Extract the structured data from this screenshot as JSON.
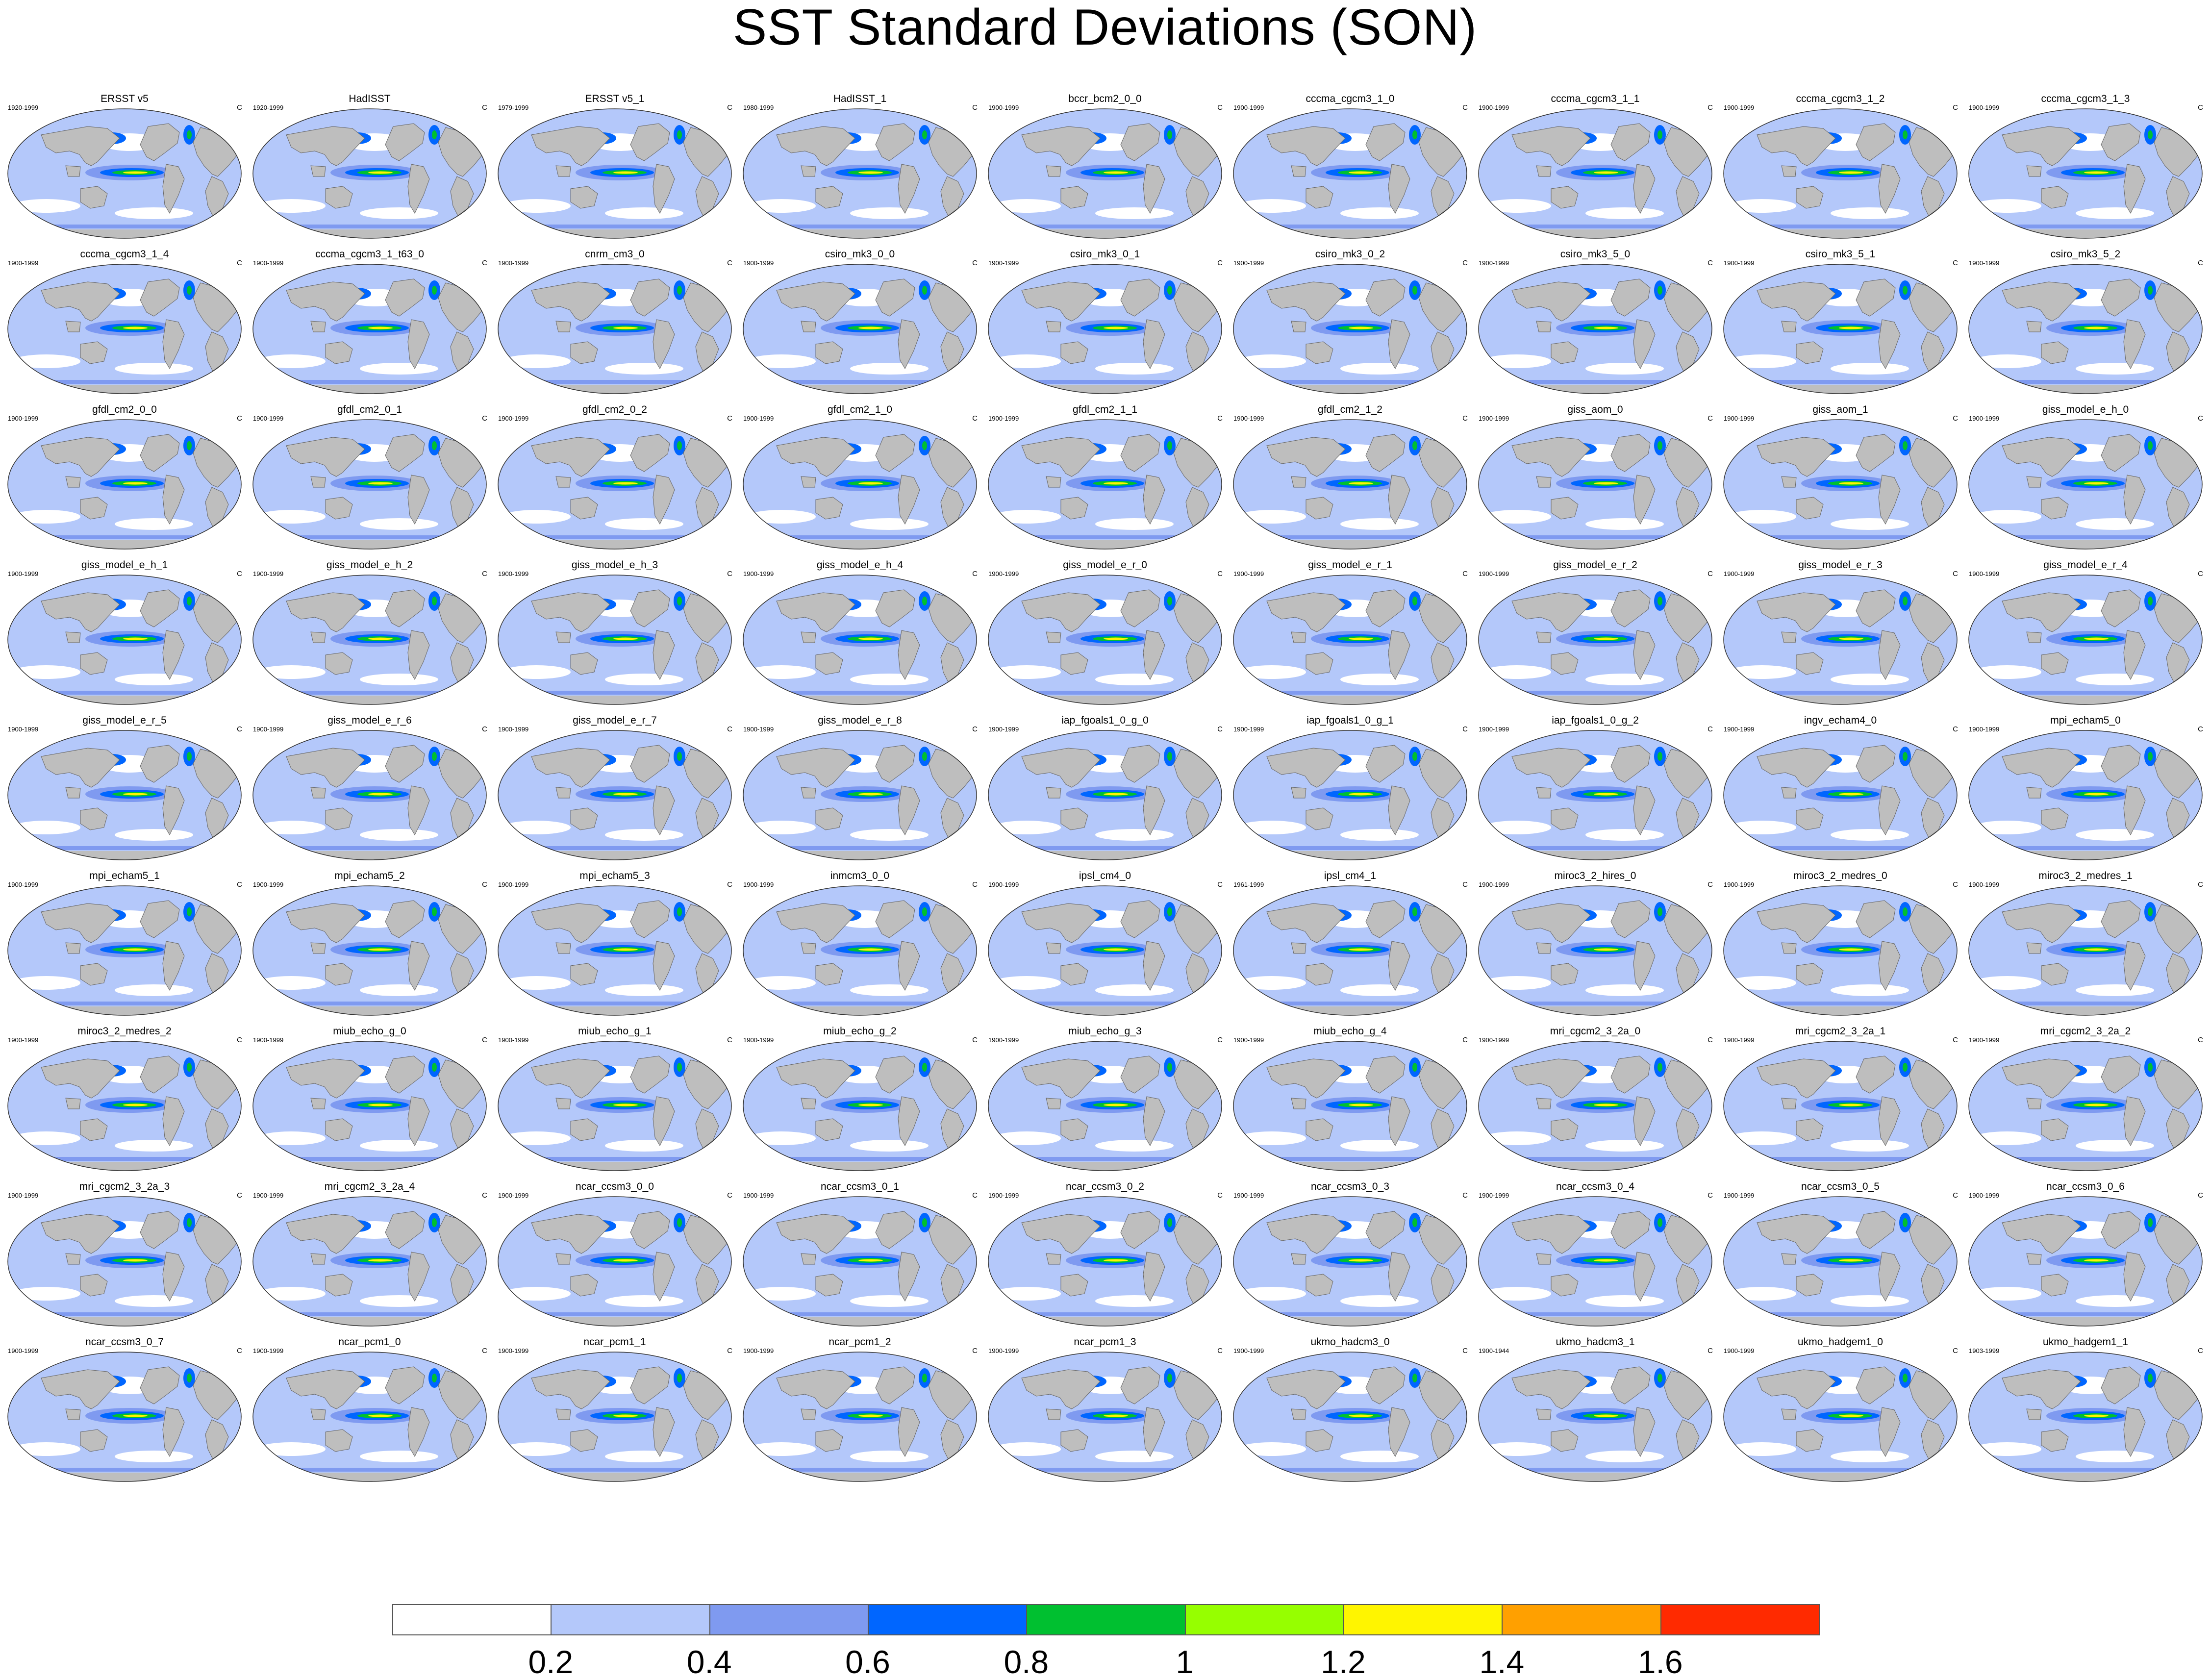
{
  "title": "SST Standard Deviations (SON)",
  "units": "C",
  "colorbar": {
    "levels": [
      "0.2",
      "0.4",
      "0.6",
      "0.8",
      "1",
      "1.2",
      "1.4",
      "1.6"
    ],
    "colors": [
      "#ffffff",
      "#b4c8fa",
      "#7f9af0",
      "#0066ff",
      "#00c030",
      "#96ff00",
      "#fff500",
      "#ffa000",
      "#ff2a00"
    ]
  },
  "land_color": "#bebebe",
  "panels": [
    {
      "name": "ERSST v5",
      "period": "1920-1999"
    },
    {
      "name": "HadISST",
      "period": "1920-1999"
    },
    {
      "name": "ERSST v5_1",
      "period": "1979-1999"
    },
    {
      "name": "HadISST_1",
      "period": "1980-1999"
    },
    {
      "name": "bccr_bcm2_0_0",
      "period": "1900-1999"
    },
    {
      "name": "cccma_cgcm3_1_0",
      "period": "1900-1999"
    },
    {
      "name": "cccma_cgcm3_1_1",
      "period": "1900-1999"
    },
    {
      "name": "cccma_cgcm3_1_2",
      "period": "1900-1999"
    },
    {
      "name": "cccma_cgcm3_1_3",
      "period": "1900-1999"
    },
    {
      "name": "cccma_cgcm3_1_4",
      "period": "1900-1999"
    },
    {
      "name": "cccma_cgcm3_1_t63_0",
      "period": "1900-1999"
    },
    {
      "name": "cnrm_cm3_0",
      "period": "1900-1999"
    },
    {
      "name": "csiro_mk3_0_0",
      "period": "1900-1999"
    },
    {
      "name": "csiro_mk3_0_1",
      "period": "1900-1999"
    },
    {
      "name": "csiro_mk3_0_2",
      "period": "1900-1999"
    },
    {
      "name": "csiro_mk3_5_0",
      "period": "1900-1999"
    },
    {
      "name": "csiro_mk3_5_1",
      "period": "1900-1999"
    },
    {
      "name": "csiro_mk3_5_2",
      "period": "1900-1999"
    },
    {
      "name": "gfdl_cm2_0_0",
      "period": "1900-1999"
    },
    {
      "name": "gfdl_cm2_0_1",
      "period": "1900-1999"
    },
    {
      "name": "gfdl_cm2_0_2",
      "period": "1900-1999"
    },
    {
      "name": "gfdl_cm2_1_0",
      "period": "1900-1999"
    },
    {
      "name": "gfdl_cm2_1_1",
      "period": "1900-1999"
    },
    {
      "name": "gfdl_cm2_1_2",
      "period": "1900-1999"
    },
    {
      "name": "giss_aom_0",
      "period": "1900-1999"
    },
    {
      "name": "giss_aom_1",
      "period": "1900-1999"
    },
    {
      "name": "giss_model_e_h_0",
      "period": "1900-1999"
    },
    {
      "name": "giss_model_e_h_1",
      "period": "1900-1999"
    },
    {
      "name": "giss_model_e_h_2",
      "period": "1900-1999"
    },
    {
      "name": "giss_model_e_h_3",
      "period": "1900-1999"
    },
    {
      "name": "giss_model_e_h_4",
      "period": "1900-1999"
    },
    {
      "name": "giss_model_e_r_0",
      "period": "1900-1999"
    },
    {
      "name": "giss_model_e_r_1",
      "period": "1900-1999"
    },
    {
      "name": "giss_model_e_r_2",
      "period": "1900-1999"
    },
    {
      "name": "giss_model_e_r_3",
      "period": "1900-1999"
    },
    {
      "name": "giss_model_e_r_4",
      "period": "1900-1999"
    },
    {
      "name": "giss_model_e_r_5",
      "period": "1900-1999"
    },
    {
      "name": "giss_model_e_r_6",
      "period": "1900-1999"
    },
    {
      "name": "giss_model_e_r_7",
      "period": "1900-1999"
    },
    {
      "name": "giss_model_e_r_8",
      "period": "1900-1999"
    },
    {
      "name": "iap_fgoals1_0_g_0",
      "period": "1900-1999"
    },
    {
      "name": "iap_fgoals1_0_g_1",
      "period": "1900-1999"
    },
    {
      "name": "iap_fgoals1_0_g_2",
      "period": "1900-1999"
    },
    {
      "name": "ingv_echam4_0",
      "period": "1900-1999"
    },
    {
      "name": "mpi_echam5_0",
      "period": "1900-1999"
    },
    {
      "name": "mpi_echam5_1",
      "period": "1900-1999"
    },
    {
      "name": "mpi_echam5_2",
      "period": "1900-1999"
    },
    {
      "name": "mpi_echam5_3",
      "period": "1900-1999"
    },
    {
      "name": "inmcm3_0_0",
      "period": "1900-1999"
    },
    {
      "name": "ipsl_cm4_0",
      "period": "1900-1999"
    },
    {
      "name": "ipsl_cm4_1",
      "period": "1961-1999"
    },
    {
      "name": "miroc3_2_hires_0",
      "period": "1900-1999"
    },
    {
      "name": "miroc3_2_medres_0",
      "period": "1900-1999"
    },
    {
      "name": "miroc3_2_medres_1",
      "period": "1900-1999"
    },
    {
      "name": "miroc3_2_medres_2",
      "period": "1900-1999"
    },
    {
      "name": "miub_echo_g_0",
      "period": "1900-1999"
    },
    {
      "name": "miub_echo_g_1",
      "period": "1900-1999"
    },
    {
      "name": "miub_echo_g_2",
      "period": "1900-1999"
    },
    {
      "name": "miub_echo_g_3",
      "period": "1900-1999"
    },
    {
      "name": "miub_echo_g_4",
      "period": "1900-1999"
    },
    {
      "name": "mri_cgcm2_3_2a_0",
      "period": "1900-1999"
    },
    {
      "name": "mri_cgcm2_3_2a_1",
      "period": "1900-1999"
    },
    {
      "name": "mri_cgcm2_3_2a_2",
      "period": "1900-1999"
    },
    {
      "name": "mri_cgcm2_3_2a_3",
      "period": "1900-1999"
    },
    {
      "name": "mri_cgcm2_3_2a_4",
      "period": "1900-1999"
    },
    {
      "name": "ncar_ccsm3_0_0",
      "period": "1900-1999"
    },
    {
      "name": "ncar_ccsm3_0_1",
      "period": "1900-1999"
    },
    {
      "name": "ncar_ccsm3_0_2",
      "period": "1900-1999"
    },
    {
      "name": "ncar_ccsm3_0_3",
      "period": "1900-1999"
    },
    {
      "name": "ncar_ccsm3_0_4",
      "period": "1900-1999"
    },
    {
      "name": "ncar_ccsm3_0_5",
      "period": "1900-1999"
    },
    {
      "name": "ncar_ccsm3_0_6",
      "period": "1900-1999"
    },
    {
      "name": "ncar_ccsm3_0_7",
      "period": "1900-1999"
    },
    {
      "name": "ncar_pcm1_0",
      "period": "1900-1999"
    },
    {
      "name": "ncar_pcm1_1",
      "period": "1900-1999"
    },
    {
      "name": "ncar_pcm1_2",
      "period": "1900-1999"
    },
    {
      "name": "ncar_pcm1_3",
      "period": "1900-1999"
    },
    {
      "name": "ukmo_hadcm3_0",
      "period": "1900-1999"
    },
    {
      "name": "ukmo_hadcm3_1",
      "period": "1900-1944"
    },
    {
      "name": "ukmo_hadgem1_0",
      "period": "1900-1999"
    },
    {
      "name": "ukmo_hadgem1_1",
      "period": "1903-1999"
    }
  ]
}
